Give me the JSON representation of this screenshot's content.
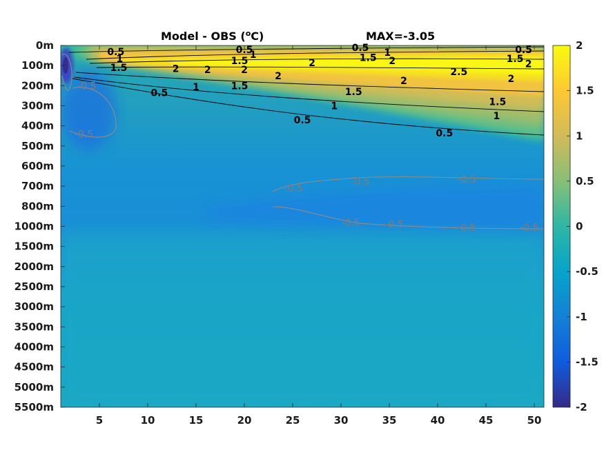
{
  "chart_data": {
    "type": "heatmap",
    "title_left": "Model - OBS (",
    "title_degree": "o",
    "title_unit": "C)",
    "title_right": "MAX=-3.05",
    "xlim": [
      1,
      51
    ],
    "x_ticks": [
      "5",
      "10",
      "15",
      "20",
      "25",
      "30",
      "35",
      "40",
      "45",
      "50"
    ],
    "x_tick_values": [
      5,
      10,
      15,
      20,
      25,
      30,
      35,
      40,
      45,
      50
    ],
    "y_ticks": [
      "0m",
      "100m",
      "200m",
      "300m",
      "400m",
      "500m",
      "600m",
      "700m",
      "800m",
      "1000m",
      "1500m",
      "2000m",
      "2500m",
      "3000m",
      "3500m",
      "4000m",
      "4500m",
      "5000m",
      "5500m"
    ],
    "colorbar": {
      "clim": [
        -2,
        2
      ],
      "ticks": [
        "2",
        "1.5",
        "1",
        "0.5",
        "0",
        "-0.5",
        "-1",
        "-1.5",
        "-2"
      ],
      "tick_values": [
        2,
        1.5,
        1,
        0.5,
        0,
        -0.5,
        -1,
        -1.5,
        -2
      ],
      "colormap": "parula",
      "colormap_stops": [
        "#352a87",
        "#0f5cdd",
        "#1481d6",
        "#06a4ca",
        "#2eb7a4",
        "#87bf77",
        "#d1bb59",
        "#fec832",
        "#f9fb0e"
      ]
    },
    "contour_labels": [
      {
        "text": "0.5",
        "x": 6.7,
        "depth_index": 0.3,
        "style": "black"
      },
      {
        "text": "1",
        "x": 7.1,
        "depth_index": 0.65,
        "style": "black"
      },
      {
        "text": "1.5",
        "x": 7.0,
        "depth_index": 1.1,
        "style": "black"
      },
      {
        "text": "2",
        "x": 12.9,
        "depth_index": 1.15,
        "style": "black"
      },
      {
        "text": "2",
        "x": 16.2,
        "depth_index": 1.2,
        "style": "black"
      },
      {
        "text": "1",
        "x": 15.0,
        "depth_index": 2.05,
        "style": "black"
      },
      {
        "text": "0.5",
        "x": 11.2,
        "depth_index": 2.35,
        "style": "black"
      },
      {
        "text": "0.5",
        "x": 20.0,
        "depth_index": 0.2,
        "style": "black"
      },
      {
        "text": "1",
        "x": 20.9,
        "depth_index": 0.45,
        "style": "black"
      },
      {
        "text": "1.5",
        "x": 19.5,
        "depth_index": 0.75,
        "style": "black"
      },
      {
        "text": "2",
        "x": 20.0,
        "depth_index": 1.2,
        "style": "black"
      },
      {
        "text": "1.5",
        "x": 19.5,
        "depth_index": 2.0,
        "style": "black"
      },
      {
        "text": "2",
        "x": 23.5,
        "depth_index": 1.5,
        "style": "black"
      },
      {
        "text": "2",
        "x": 27.0,
        "depth_index": 0.85,
        "style": "black"
      },
      {
        "text": "0.5",
        "x": 32.0,
        "depth_index": 0.1,
        "style": "black"
      },
      {
        "text": "1.5",
        "x": 32.8,
        "depth_index": 0.6,
        "style": "black"
      },
      {
        "text": "1",
        "x": 34.8,
        "depth_index": 0.35,
        "style": "black"
      },
      {
        "text": "2",
        "x": 35.3,
        "depth_index": 0.75,
        "style": "black"
      },
      {
        "text": "2",
        "x": 36.5,
        "depth_index": 1.75,
        "style": "black"
      },
      {
        "text": "1.5",
        "x": 31.3,
        "depth_index": 2.3,
        "style": "black"
      },
      {
        "text": "1",
        "x": 29.3,
        "depth_index": 3.0,
        "style": "black"
      },
      {
        "text": "0.5",
        "x": 26.0,
        "depth_index": 3.7,
        "style": "black"
      },
      {
        "text": "0.5",
        "x": 40.7,
        "depth_index": 4.35,
        "style": "black"
      },
      {
        "text": "2.5",
        "x": 42.2,
        "depth_index": 1.3,
        "style": "black"
      },
      {
        "text": "2",
        "x": 47.6,
        "depth_index": 1.65,
        "style": "black"
      },
      {
        "text": "1.5",
        "x": 46.2,
        "depth_index": 2.8,
        "style": "black"
      },
      {
        "text": "1",
        "x": 46.1,
        "depth_index": 3.5,
        "style": "black"
      },
      {
        "text": "0.5",
        "x": 48.9,
        "depth_index": 0.2,
        "style": "black"
      },
      {
        "text": "1.5",
        "x": 48.0,
        "depth_index": 0.65,
        "style": "black"
      },
      {
        "text": "2",
        "x": 49.4,
        "depth_index": 0.9,
        "style": "black"
      },
      {
        "text": "-0.5",
        "x": 3.7,
        "depth_index": 2.0,
        "style": "grey"
      },
      {
        "text": "-0.5",
        "x": 3.4,
        "depth_index": 4.4,
        "style": "grey"
      },
      {
        "text": "-0.5",
        "x": 25.1,
        "depth_index": 7.1,
        "style": "grey"
      },
      {
        "text": "-0.5",
        "x": 32.0,
        "depth_index": 6.75,
        "style": "grey"
      },
      {
        "text": "-0.5",
        "x": 43.0,
        "depth_index": 6.65,
        "style": "grey"
      },
      {
        "text": "-0.5",
        "x": 31.0,
        "depth_index": 8.8,
        "style": "grey"
      },
      {
        "text": "-0.5",
        "x": 35.5,
        "depth_index": 8.9,
        "style": "grey"
      },
      {
        "text": "-0.5",
        "x": 43.0,
        "depth_index": 9.05,
        "style": "grey"
      },
      {
        "text": "-0.5",
        "x": 49.5,
        "depth_index": 9.05,
        "style": "grey"
      }
    ]
  }
}
